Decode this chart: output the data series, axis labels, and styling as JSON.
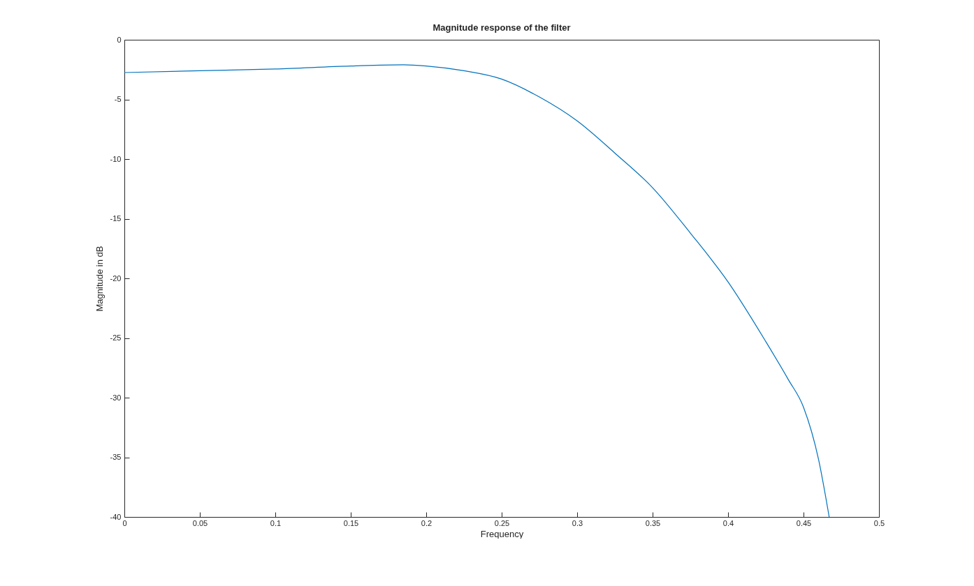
{
  "chart_data": {
    "type": "line",
    "title": "Magnitude response of the filter",
    "xlabel": "Frequency",
    "ylabel": "Magnitude in dB",
    "x": [
      0,
      0.05,
      0.1,
      0.15,
      0.185,
      0.2,
      0.225,
      0.25,
      0.275,
      0.3,
      0.325,
      0.35,
      0.375,
      0.4,
      0.425,
      0.44,
      0.45,
      0.46,
      0.467
    ],
    "series": [
      {
        "color": "#0072bd",
        "values": [
          -2.75,
          -2.6,
          -2.45,
          -2.2,
          -2.1,
          -2.2,
          -2.6,
          -3.3,
          -4.8,
          -6.8,
          -9.5,
          -12.4,
          -16.2,
          -20.3,
          -25.3,
          -28.5,
          -30.8,
          -35.2,
          -40
        ]
      }
    ],
    "xlim": [
      0,
      0.5
    ],
    "xticks": [
      0,
      0.05,
      0.1,
      0.15,
      0.2,
      0.25,
      0.3,
      0.35,
      0.4,
      0.45,
      0.5
    ],
    "ylim": [
      -40,
      0
    ],
    "yticks": [
      -40,
      -35,
      -30,
      -25,
      -20,
      -15,
      -10,
      -5,
      0
    ],
    "grid": false,
    "legend": false,
    "line_style": "solid",
    "marker": "none"
  }
}
